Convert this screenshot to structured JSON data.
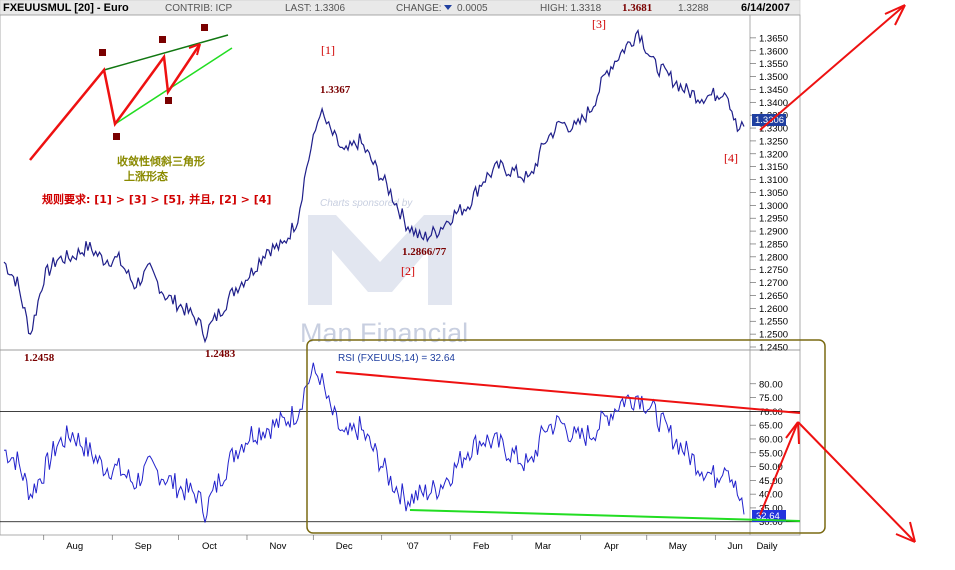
{
  "header": {
    "symbol": "FXEUUSMUL [20] - Euro",
    "contrib": "CONTRIB: ICP",
    "last": "LAST: 1.3306",
    "change_label": "CHANGE:",
    "change_value": "0.0005",
    "high": "HIGH: 1.3318",
    "low_value": "1.3288",
    "date": "6/14/2007"
  },
  "watermark": {
    "sponsor": "Charts sponsored by",
    "brand": "Man Financial"
  },
  "annotations": {
    "w1": "[1]",
    "w1_price": "1.3367",
    "w2": "[2]",
    "w2_price": "1.2866/77",
    "w3": "[3]",
    "w3_price": "1.3681",
    "w4": "[4]",
    "low_aug": "1.2458",
    "low_oct": "1.2483",
    "pattern_line1": "收敛性倾斜三角形",
    "pattern_line2": "上涨形态",
    "rule": "规则要求: [1] > [3] > [5], 并且, [2] > [4]"
  },
  "colors": {
    "price": "#1f1f8a",
    "rsi": "#2222cc",
    "red": "#ee1111",
    "green": "#22dd22",
    "olive_box": "#7a6a12",
    "dark_green": "#117711",
    "last_badge": "#1f3fa0",
    "rsi_badge": "#2233dd"
  },
  "chart_data": [
    {
      "type": "line",
      "title": "FXEUUSMUL [20] - Euro",
      "frequency": "Daily",
      "x_labels": [
        "Aug",
        "Sep",
        "Oct",
        "Nov",
        "Dec",
        "'07",
        "Feb",
        "Mar",
        "Apr",
        "May",
        "Jun",
        "Daily"
      ],
      "ylim": [
        1.245,
        1.37
      ],
      "y_ticks": [
        "1.3650",
        "1.3600",
        "1.3550",
        "1.3500",
        "1.3450",
        "1.3400",
        "1.3350",
        "1.3300",
        "1.3250",
        "1.3200",
        "1.3150",
        "1.3100",
        "1.3050",
        "1.3000",
        "1.2950",
        "1.2900",
        "1.2850",
        "1.2800",
        "1.2750",
        "1.2700",
        "1.2650",
        "1.2600",
        "1.2550",
        "1.2500",
        "1.2450"
      ],
      "last_value": "1.3306",
      "series": [
        {
          "name": "Euro",
          "x": [
            "2006-07-14",
            "2006-07-20",
            "2006-07-26",
            "2006-08-01",
            "2006-08-07",
            "2006-08-14",
            "2006-08-21",
            "2006-08-28",
            "2006-09-04",
            "2006-09-11",
            "2006-09-18",
            "2006-09-25",
            "2006-10-02",
            "2006-10-09",
            "2006-10-13",
            "2006-10-20",
            "2006-10-27",
            "2006-11-03",
            "2006-11-10",
            "2006-11-17",
            "2006-11-24",
            "2006-11-28",
            "2006-12-01",
            "2006-12-04",
            "2006-12-08",
            "2006-12-15",
            "2006-12-22",
            "2006-12-29",
            "2007-01-05",
            "2007-01-12",
            "2007-01-19",
            "2007-01-26",
            "2007-02-02",
            "2007-02-09",
            "2007-02-16",
            "2007-02-23",
            "2007-03-02",
            "2007-03-09",
            "2007-03-16",
            "2007-03-23",
            "2007-03-30",
            "2007-04-06",
            "2007-04-13",
            "2007-04-20",
            "2007-04-25",
            "2007-04-27",
            "2007-05-04",
            "2007-05-11",
            "2007-05-18",
            "2007-05-25",
            "2007-06-01",
            "2007-06-06",
            "2007-06-11",
            "2007-06-14"
          ],
          "y": [
            1.278,
            1.27,
            1.25,
            1.272,
            1.279,
            1.28,
            1.284,
            1.279,
            1.279,
            1.269,
            1.275,
            1.265,
            1.261,
            1.256,
            1.25,
            1.259,
            1.268,
            1.274,
            1.283,
            1.284,
            1.295,
            1.315,
            1.325,
            1.3367,
            1.33,
            1.32,
            1.325,
            1.315,
            1.305,
            1.293,
            1.287,
            1.29,
            1.296,
            1.3,
            1.31,
            1.315,
            1.313,
            1.31,
            1.325,
            1.332,
            1.33,
            1.338,
            1.352,
            1.36,
            1.365,
            1.3681,
            1.355,
            1.35,
            1.345,
            1.342,
            1.343,
            1.345,
            1.329,
            1.3306
          ]
        }
      ]
    },
    {
      "type": "line",
      "title": "RSI (FXEUUS,14) = 32.64",
      "ylim": [
        27,
        85
      ],
      "y_ticks": [
        "80.00",
        "75.00",
        "70.00",
        "65.00",
        "60.00",
        "55.00",
        "50.00",
        "45.00",
        "40.00",
        "35.00",
        "30.00"
      ],
      "reference_lines": [
        70,
        30
      ],
      "last_value": "32.64",
      "series": [
        {
          "name": "RSI (FXEUUS,14)",
          "x": [
            "2006-07-14",
            "2006-07-20",
            "2006-07-26",
            "2006-08-01",
            "2006-08-07",
            "2006-08-14",
            "2006-08-21",
            "2006-08-28",
            "2006-09-04",
            "2006-09-11",
            "2006-09-18",
            "2006-09-25",
            "2006-10-02",
            "2006-10-09",
            "2006-10-13",
            "2006-10-20",
            "2006-10-27",
            "2006-11-03",
            "2006-11-10",
            "2006-11-17",
            "2006-11-24",
            "2006-11-28",
            "2006-12-01",
            "2006-12-04",
            "2006-12-08",
            "2006-12-15",
            "2006-12-22",
            "2006-12-29",
            "2007-01-05",
            "2007-01-12",
            "2007-01-19",
            "2007-01-26",
            "2007-02-02",
            "2007-02-09",
            "2007-02-16",
            "2007-02-23",
            "2007-03-02",
            "2007-03-09",
            "2007-03-16",
            "2007-03-23",
            "2007-03-30",
            "2007-04-06",
            "2007-04-13",
            "2007-04-20",
            "2007-04-25",
            "2007-04-27",
            "2007-05-04",
            "2007-05-11",
            "2007-05-18",
            "2007-05-25",
            "2007-06-01",
            "2007-06-06",
            "2007-06-11",
            "2007-06-14"
          ],
          "y": [
            56,
            52,
            40,
            48,
            58,
            62,
            56,
            50,
            49,
            44,
            50,
            46,
            42,
            40,
            34,
            46,
            56,
            62,
            64,
            66,
            70,
            80,
            84,
            83,
            72,
            60,
            64,
            55,
            45,
            38,
            40,
            42,
            48,
            56,
            60,
            58,
            54,
            50,
            64,
            66,
            60,
            62,
            68,
            74,
            75,
            76,
            70,
            62,
            56,
            50,
            46,
            52,
            40,
            32.64
          ]
        }
      ]
    }
  ]
}
